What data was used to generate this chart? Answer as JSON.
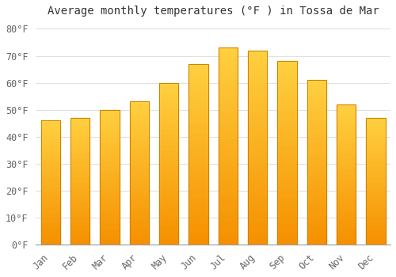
{
  "title": "Average monthly temperatures (°F ) in Tossa de Mar",
  "months": [
    "Jan",
    "Feb",
    "Mar",
    "Apr",
    "May",
    "Jun",
    "Jul",
    "Aug",
    "Sep",
    "Oct",
    "Nov",
    "Dec"
  ],
  "values": [
    46,
    47,
    50,
    53,
    60,
    67,
    73,
    72,
    68,
    61,
    52,
    47
  ],
  "bar_color_top": "#FFD040",
  "bar_color_bottom": "#F59000",
  "bar_edge_color": "#C8820A",
  "background_color": "#FFFFFF",
  "grid_color": "#E0E0E0",
  "ylim": [
    0,
    83
  ],
  "yticks": [
    0,
    10,
    20,
    30,
    40,
    50,
    60,
    70,
    80
  ],
  "title_fontsize": 10,
  "tick_fontsize": 8.5,
  "font_family": "monospace"
}
